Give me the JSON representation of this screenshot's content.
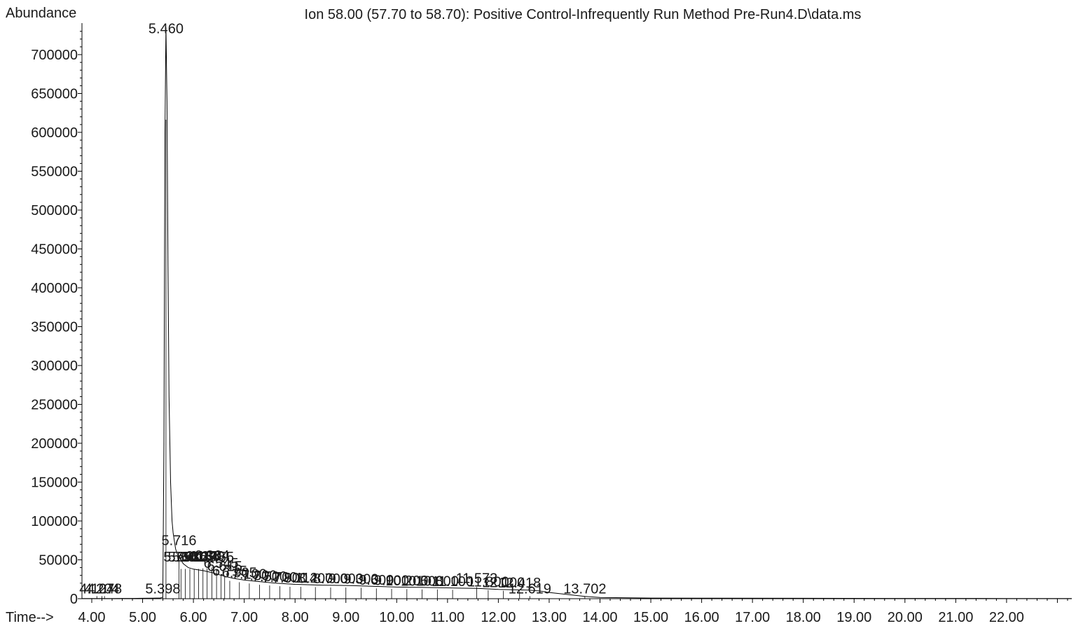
{
  "chart_data": {
    "type": "line",
    "title": "Ion  58.00 (57.70 to 58.70): Positive Control-Infrequently Run Method Pre-Run4.D\\data.ms",
    "xlabel": "Time-->",
    "ylabel": "Abundance",
    "xlim": [
      3.8,
      23.3
    ],
    "ylim": [
      0,
      740000
    ],
    "x_ticks": [
      "4.00",
      "5.00",
      "6.00",
      "7.00",
      "8.00",
      "9.00",
      "10.00",
      "11.00",
      "12.00",
      "13.00",
      "14.00",
      "15.00",
      "16.00",
      "17.00",
      "18.00",
      "19.00",
      "20.00",
      "21.00",
      "22.00"
    ],
    "x_tick_values": [
      4,
      5,
      6,
      7,
      8,
      9,
      10,
      11,
      12,
      13,
      14,
      15,
      16,
      17,
      18,
      19,
      20,
      21,
      22
    ],
    "y_ticks": [
      "0",
      "50000",
      "100000",
      "150000",
      "200000",
      "250000",
      "300000",
      "350000",
      "400000",
      "450000",
      "500000",
      "550000",
      "600000",
      "650000",
      "700000"
    ],
    "y_tick_values": [
      0,
      50000,
      100000,
      150000,
      200000,
      250000,
      300000,
      350000,
      400000,
      450000,
      500000,
      550000,
      600000,
      650000,
      700000
    ],
    "series": [
      {
        "x": [
          3.8,
          4.0,
          4.2,
          4.4,
          4.6,
          4.8,
          5.0,
          5.2,
          5.35,
          5.398,
          5.42,
          5.44,
          5.46,
          5.48,
          5.5,
          5.52,
          5.55,
          5.58,
          5.6,
          5.63,
          5.65,
          5.68,
          5.716,
          5.75,
          5.8,
          5.9,
          6.0,
          6.2,
          6.4,
          6.6,
          6.8,
          7.0,
          7.3,
          7.6,
          8.0,
          8.5,
          9.0,
          9.5,
          10.0,
          10.5,
          11.0,
          11.3,
          11.573,
          11.7,
          12.0,
          12.3,
          12.6,
          12.8,
          13.0,
          13.702,
          14.0,
          15.0,
          16.0,
          18.0,
          20.0,
          22.0,
          23.3
        ],
        "y": [
          200,
          300,
          300,
          300,
          350,
          400,
          500,
          700,
          900,
          2000,
          200000,
          600000,
          735000,
          640000,
          430000,
          260000,
          150000,
          100000,
          85000,
          72000,
          64000,
          58000,
          55000,
          50000,
          45000,
          40000,
          38000,
          36000,
          33000,
          29000,
          26000,
          24000,
          22000,
          20000,
          18500,
          17500,
          17000,
          16000,
          15000,
          14500,
          14000,
          13500,
          13200,
          13000,
          12000,
          11500,
          11000,
          10000,
          8000,
          3000,
          1500,
          800,
          600,
          500,
          400,
          300,
          300
        ]
      }
    ],
    "peak_labels": [
      {
        "text": "4.107",
        "x": 4.1,
        "y": 4000
      },
      {
        "text": "4.204",
        "x": 4.2,
        "y": 4000
      },
      {
        "text": "4.248",
        "x": 4.25,
        "y": 4000
      },
      {
        "text": "5.398",
        "x": 5.398,
        "y": 4000
      },
      {
        "text": "5.460",
        "x": 5.46,
        "y": 725000
      },
      {
        "text": "5.716",
        "x": 5.716,
        "y": 66000
      },
      {
        "text": "5.755",
        "x": 5.755,
        "y": 45000
      },
      {
        "text": "5.840",
        "x": 5.84,
        "y": 45000
      },
      {
        "text": "5.930",
        "x": 5.93,
        "y": 45000
      },
      {
        "text": "6.015",
        "x": 6.015,
        "y": 45000
      },
      {
        "text": "6.103",
        "x": 6.103,
        "y": 45000
      },
      {
        "text": "6.188",
        "x": 6.188,
        "y": 46000
      },
      {
        "text": "6.270",
        "x": 6.27,
        "y": 46000
      },
      {
        "text": "6.364",
        "x": 6.364,
        "y": 47000
      },
      {
        "text": "6.455",
        "x": 6.455,
        "y": 45000
      },
      {
        "text": "6.545",
        "x": 6.545,
        "y": 37000
      },
      {
        "text": "6.615",
        "x": 6.615,
        "y": 33000
      },
      {
        "text": "6.715",
        "x": 6.715,
        "y": 27000
      },
      {
        "text": "6.905",
        "x": 6.905,
        "y": 25000
      },
      {
        "text": "7.100",
        "x": 7.1,
        "y": 23000
      },
      {
        "text": "7.300",
        "x": 7.3,
        "y": 21000
      },
      {
        "text": "7.500",
        "x": 7.5,
        "y": 20000
      },
      {
        "text": "7.700",
        "x": 7.7,
        "y": 19000
      },
      {
        "text": "7.900",
        "x": 7.9,
        "y": 18000
      },
      {
        "text": "8.112",
        "x": 8.112,
        "y": 18000
      },
      {
        "text": "8.400",
        "x": 8.4,
        "y": 17500
      },
      {
        "text": "8.700",
        "x": 8.7,
        "y": 17000
      },
      {
        "text": "9.000",
        "x": 9.0,
        "y": 17000
      },
      {
        "text": "9.300",
        "x": 9.3,
        "y": 16500
      },
      {
        "text": "9.600",
        "x": 9.6,
        "y": 15500
      },
      {
        "text": "9.900",
        "x": 9.9,
        "y": 15000
      },
      {
        "text": "10.200",
        "x": 10.2,
        "y": 14500
      },
      {
        "text": "10.500",
        "x": 10.5,
        "y": 14000
      },
      {
        "text": "10.800",
        "x": 10.8,
        "y": 14000
      },
      {
        "text": "11.100",
        "x": 11.1,
        "y": 13500
      },
      {
        "text": "11.573",
        "x": 11.573,
        "y": 17500
      },
      {
        "text": "11.800",
        "x": 11.8,
        "y": 13000
      },
      {
        "text": "12.100",
        "x": 12.1,
        "y": 12000
      },
      {
        "text": "12.418",
        "x": 12.418,
        "y": 11500
      },
      {
        "text": "12.619",
        "x": 12.619,
        "y": 4000
      },
      {
        "text": "13.702",
        "x": 13.702,
        "y": 4000
      }
    ]
  }
}
